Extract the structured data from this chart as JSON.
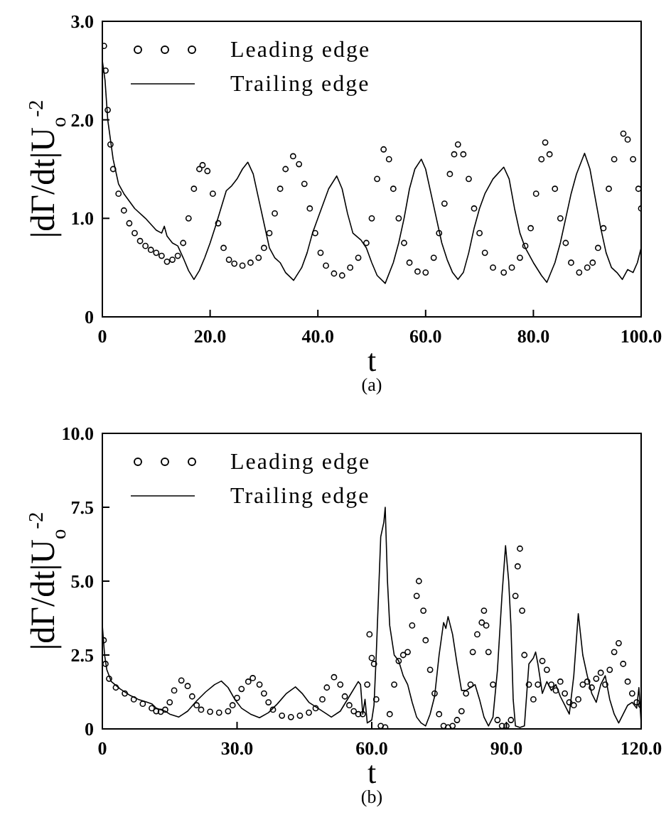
{
  "chart_data": [
    {
      "type": "line",
      "xlabel": "t",
      "ylabel": "|dΓ/dt|U$_{o}$$^{-2}$",
      "annotations": [
        "(a)"
      ],
      "xlim": [
        0,
        100
      ],
      "ylim": [
        0,
        3
      ],
      "xticks": [
        0,
        {
          "value": 20,
          "label": "20.0"
        },
        {
          "value": 40,
          "label": "40.0"
        },
        {
          "value": 60,
          "label": "60.0"
        },
        {
          "value": 80,
          "label": "80.0"
        },
        {
          "value": 100,
          "label": "100.0"
        }
      ],
      "yticks": [
        0,
        {
          "value": 1,
          "label": "1.0"
        },
        {
          "value": 2,
          "label": "2.0"
        },
        {
          "value": 3,
          "label": "3.0"
        }
      ],
      "legend": "top left",
      "grid": false,
      "series": [
        {
          "name": "Leading edge",
          "type": "scatter",
          "marker": "circle",
          "color": "#000000",
          "x": [
            0.3,
            0.6,
            1,
            1.5,
            2,
            3,
            4,
            5,
            6,
            7,
            8,
            9,
            10,
            11,
            12,
            13,
            14,
            15,
            16,
            17,
            18,
            18.6,
            19.5,
            20.5,
            21.5,
            22.5,
            23.5,
            24.5,
            26,
            27.5,
            29,
            30,
            31,
            32,
            33,
            34,
            35.4,
            36.5,
            37.5,
            38.5,
            39.5,
            40.5,
            41.5,
            43,
            44.5,
            46,
            47.5,
            49,
            50,
            51,
            52.2,
            53.2,
            54,
            55,
            56,
            57,
            58.5,
            60,
            61.5,
            62.5,
            63.5,
            64.5,
            65.3,
            66,
            67,
            68,
            69,
            70,
            71,
            72.5,
            74.5,
            76,
            77.5,
            78.5,
            79.5,
            80.5,
            81.5,
            82.2,
            83,
            84,
            85,
            86,
            87,
            88.5,
            90,
            91,
            92,
            93,
            94,
            95,
            96.7,
            97.5,
            98.5,
            99.5,
            100
          ],
          "values": [
            2.75,
            2.5,
            2.1,
            1.75,
            1.5,
            1.25,
            1.08,
            0.95,
            0.85,
            0.77,
            0.72,
            0.68,
            0.65,
            0.62,
            0.56,
            0.58,
            0.62,
            0.75,
            1.0,
            1.3,
            1.5,
            1.54,
            1.48,
            1.25,
            0.95,
            0.7,
            0.58,
            0.54,
            0.52,
            0.55,
            0.6,
            0.7,
            0.85,
            1.05,
            1.3,
            1.5,
            1.63,
            1.55,
            1.35,
            1.1,
            0.85,
            0.65,
            0.52,
            0.44,
            0.42,
            0.5,
            0.6,
            0.75,
            1.0,
            1.4,
            1.7,
            1.6,
            1.3,
            1.0,
            0.75,
            0.55,
            0.46,
            0.45,
            0.6,
            0.85,
            1.15,
            1.45,
            1.65,
            1.75,
            1.65,
            1.4,
            1.1,
            0.85,
            0.65,
            0.5,
            0.45,
            0.5,
            0.6,
            0.72,
            0.9,
            1.25,
            1.6,
            1.77,
            1.65,
            1.3,
            1.0,
            0.75,
            0.55,
            0.45,
            0.5,
            0.55,
            0.7,
            0.9,
            1.3,
            1.6,
            1.86,
            1.8,
            1.6,
            1.3,
            1.1
          ]
        },
        {
          "name": "Trailing edge",
          "marker": "none",
          "line_style": "solid",
          "color": "#000000",
          "x": [
            0,
            0.5,
            1,
            2,
            3,
            4,
            6,
            8,
            10,
            11,
            11.5,
            12,
            13,
            14,
            15,
            16,
            17,
            18,
            19,
            20,
            21,
            22,
            23,
            24,
            25,
            26,
            27,
            28,
            29,
            30,
            31,
            32,
            33,
            34,
            35.5,
            37,
            38,
            39,
            40,
            41,
            42,
            43.5,
            44.5,
            45.5,
            46.5,
            48,
            49,
            50,
            51,
            52.5,
            54,
            55,
            56,
            57,
            58,
            59.2,
            60,
            61,
            62,
            63,
            64,
            65,
            66,
            67,
            68,
            69,
            70,
            71,
            72.5,
            74.5,
            75.5,
            76.5,
            77.5,
            78.5,
            80,
            81.5,
            82.5,
            84,
            85,
            86,
            87,
            88,
            89.5,
            90.5,
            91.5,
            92.5,
            93.5,
            94.5,
            95.5,
            96.5,
            97.5,
            98.5,
            99.3,
            100
          ],
          "values": [
            2.6,
            2.4,
            2.0,
            1.6,
            1.35,
            1.25,
            1.1,
            1.0,
            0.88,
            0.85,
            0.92,
            0.82,
            0.75,
            0.72,
            0.6,
            0.47,
            0.38,
            0.47,
            0.6,
            0.75,
            0.92,
            1.1,
            1.28,
            1.33,
            1.4,
            1.5,
            1.57,
            1.45,
            1.2,
            0.95,
            0.7,
            0.6,
            0.55,
            0.45,
            0.37,
            0.5,
            0.65,
            0.85,
            1.0,
            1.15,
            1.3,
            1.43,
            1.3,
            1.05,
            0.85,
            0.78,
            0.7,
            0.55,
            0.42,
            0.34,
            0.55,
            0.75,
            1.0,
            1.3,
            1.5,
            1.6,
            1.5,
            1.25,
            1.0,
            0.75,
            0.58,
            0.45,
            0.38,
            0.45,
            0.65,
            0.9,
            1.1,
            1.25,
            1.4,
            1.52,
            1.4,
            1.1,
            0.85,
            0.7,
            0.55,
            0.42,
            0.35,
            0.55,
            0.75,
            1.0,
            1.25,
            1.45,
            1.66,
            1.5,
            1.2,
            0.9,
            0.65,
            0.5,
            0.45,
            0.38,
            0.48,
            0.45,
            0.55,
            0.7
          ]
        }
      ]
    },
    {
      "type": "line",
      "xlabel": "t",
      "ylabel": "|dΓ/dt|U$_{o}$$^{-2}$",
      "annotations": [
        "(b)"
      ],
      "xlim": [
        0,
        120
      ],
      "ylim": [
        0,
        10
      ],
      "xticks": [
        0,
        {
          "value": 30,
          "label": "30.0"
        },
        {
          "value": 60,
          "label": "60.0"
        },
        {
          "value": 90,
          "label": "90.0"
        },
        {
          "value": 120,
          "label": "120.0"
        }
      ],
      "yticks": [
        0,
        2.5,
        {
          "value": 5,
          "label": "5.0"
        },
        7.5,
        {
          "value": 10,
          "label": "10.0"
        }
      ],
      "legend": "top left",
      "grid": false,
      "series": [
        {
          "name": "Leading edge",
          "type": "scatter",
          "marker": "circle",
          "color": "#000000",
          "x": [
            0.3,
            0.7,
            1.5,
            3,
            5,
            7,
            9,
            11,
            12,
            13,
            14,
            15,
            16,
            17.6,
            19,
            20,
            21,
            22,
            24,
            26,
            28,
            29,
            30,
            31,
            32.5,
            33.5,
            35,
            36,
            37,
            38,
            40,
            42,
            44,
            46,
            47.5,
            49,
            50,
            51.6,
            53,
            54,
            55,
            56,
            57,
            58,
            59,
            59.5,
            60,
            60.5,
            61,
            62,
            63,
            64,
            65,
            66,
            67,
            68,
            69,
            70,
            70.5,
            71.5,
            72,
            73,
            74,
            75,
            76,
            77,
            78,
            79,
            80,
            81,
            82,
            82.5,
            83.5,
            84.5,
            85,
            85.5,
            86,
            87,
            88,
            89,
            90,
            91,
            92,
            92.5,
            93,
            93.5,
            94,
            95,
            96,
            97,
            98,
            99,
            100,
            101,
            102,
            103,
            104,
            105,
            106,
            107,
            108,
            109,
            110,
            111,
            112,
            113,
            114,
            115,
            116,
            117,
            118,
            119,
            120
          ],
          "values": [
            3.0,
            2.2,
            1.7,
            1.4,
            1.2,
            1.0,
            0.85,
            0.7,
            0.6,
            0.58,
            0.65,
            0.9,
            1.3,
            1.64,
            1.45,
            1.1,
            0.8,
            0.65,
            0.58,
            0.55,
            0.6,
            0.8,
            1.05,
            1.35,
            1.6,
            1.72,
            1.5,
            1.2,
            0.9,
            0.65,
            0.45,
            0.4,
            0.45,
            0.55,
            0.7,
            1.0,
            1.4,
            1.75,
            1.5,
            1.1,
            0.8,
            0.6,
            0.5,
            0.5,
            1.5,
            3.2,
            2.4,
            2.2,
            1.0,
            0.1,
            0.05,
            0.5,
            1.5,
            2.3,
            2.5,
            2.6,
            3.5,
            4.5,
            5.0,
            4.0,
            3.0,
            2.0,
            1.2,
            0.5,
            0.1,
            0.05,
            0.1,
            0.3,
            0.6,
            1.2,
            1.5,
            2.6,
            3.2,
            3.6,
            4.0,
            3.5,
            2.6,
            1.5,
            0.3,
            0.1,
            0.1,
            0.3,
            4.5,
            5.5,
            6.1,
            4.0,
            2.5,
            1.5,
            1.0,
            1.5,
            2.3,
            2.0,
            1.5,
            1.3,
            1.6,
            1.2,
            0.9,
            0.8,
            1.0,
            1.5,
            1.6,
            1.4,
            1.7,
            1.9,
            1.5,
            2.0,
            2.6,
            2.9,
            2.2,
            1.6,
            1.2,
            0.9,
            0.8
          ]
        },
        {
          "name": "Trailing edge",
          "marker": "none",
          "line_style": "solid",
          "color": "#000000",
          "x": [
            0,
            0.5,
            1,
            2,
            4,
            6,
            8,
            10,
            11,
            12,
            13,
            14,
            15,
            17,
            19,
            21,
            23,
            25,
            26.5,
            28,
            29.5,
            31,
            33,
            35,
            37,
            39,
            41,
            43,
            44.5,
            46,
            48,
            50,
            51,
            53,
            55,
            57,
            57.5,
            58,
            58.5,
            59,
            60,
            60.5,
            61,
            62,
            62.7,
            63,
            63.5,
            64,
            65,
            66,
            67,
            68,
            69,
            70,
            71,
            72,
            73,
            74,
            75,
            76,
            76.5,
            77,
            78,
            79,
            80,
            81,
            82,
            83,
            84,
            85,
            86,
            87,
            88,
            89,
            89.8,
            90.5,
            91,
            91.5,
            92,
            93,
            94,
            95,
            96,
            96.5,
            97,
            98,
            99,
            100,
            101,
            102,
            103,
            104,
            105,
            106,
            107,
            108,
            109,
            110,
            111,
            112,
            113,
            114,
            115,
            116,
            117,
            118,
            119,
            119.5,
            120
          ],
          "values": [
            3.5,
            2.5,
            2.0,
            1.6,
            1.35,
            1.15,
            1.0,
            0.9,
            0.85,
            0.7,
            0.65,
            0.6,
            0.5,
            0.4,
            0.6,
            0.95,
            1.25,
            1.5,
            1.62,
            1.4,
            1.0,
            0.7,
            0.5,
            0.38,
            0.55,
            0.85,
            1.2,
            1.42,
            1.2,
            0.9,
            0.7,
            0.5,
            0.4,
            0.6,
            1.1,
            1.6,
            1.5,
            0.5,
            1.0,
            0.2,
            0.3,
            0.8,
            2.5,
            6.5,
            7.0,
            7.5,
            5.0,
            3.5,
            2.5,
            2.3,
            1.8,
            1.5,
            0.9,
            0.4,
            0.2,
            0.1,
            0.5,
            1.1,
            2.5,
            3.6,
            3.4,
            3.8,
            3.2,
            2.2,
            1.3,
            1.3,
            1.4,
            1.5,
            1.0,
            0.4,
            0.1,
            0.4,
            2.0,
            4.5,
            6.2,
            5.0,
            3.5,
            1.0,
            0.1,
            0.05,
            0.1,
            2.2,
            2.4,
            2.6,
            2.2,
            1.2,
            1.6,
            1.3,
            1.5,
            1.1,
            0.8,
            0.5,
            1.8,
            3.9,
            2.5,
            1.8,
            1.2,
            0.9,
            1.5,
            1.8,
            1.0,
            0.5,
            0.2,
            0.5,
            0.8,
            0.9,
            0.7,
            1.4,
            0.2
          ]
        }
      ]
    }
  ]
}
